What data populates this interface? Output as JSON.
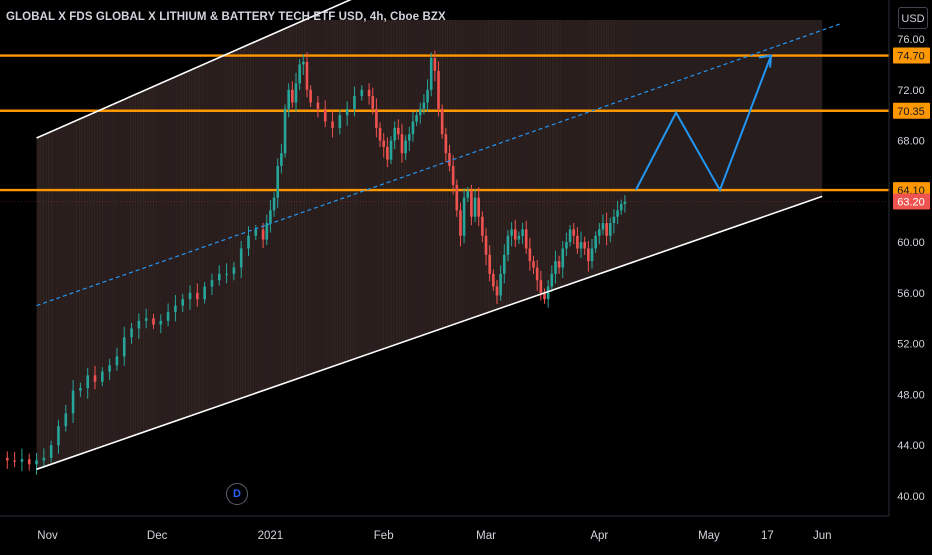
{
  "header": {
    "title": "GLOBAL X FDS GLOBAL X LITHIUM & BATTERY TECH ETF USD, 4h, Cboe BZX",
    "currency": "USD"
  },
  "dividend_marker": "D",
  "colors": {
    "background": "#000000",
    "channel_fill": "#2a1f1f",
    "up_candle": "#26a69a",
    "down_candle": "#ef5350",
    "horizontal_level": "#ff9800",
    "channel_line": "#ffffff",
    "midline": "#2196f3",
    "projection": "#2196f3",
    "axis_text": "#d1d4dc"
  },
  "chart_data": {
    "type": "candlestick",
    "title": "GLOBAL X FDS GLOBAL X LITHIUM & BATTERY TECH ETF USD, 4h, Cboe BZX",
    "y_axis": {
      "ticks": [
        40.0,
        44.0,
        48.0,
        52.0,
        56.0,
        60.0,
        64.0,
        68.0,
        72.0,
        76.0
      ],
      "tick_labels": [
        "40.00",
        "44.00",
        "48.00",
        "52.00",
        "56.00",
        "60.00",
        "64.00",
        "68.00",
        "72.00",
        "76.00"
      ],
      "ylim": [
        38.5,
        77.5
      ]
    },
    "x_axis": {
      "tick_labels": [
        "Nov",
        "Dec",
        "2021",
        "Feb",
        "Mar",
        "Apr",
        "May",
        "17",
        "Jun"
      ],
      "tick_days": [
        0,
        30,
        61,
        92,
        120,
        151,
        181,
        197,
        212
      ],
      "xlim_days": [
        -13,
        230
      ]
    },
    "price_labels": [
      {
        "value": 74.7,
        "label": "74.70",
        "kind": "level"
      },
      {
        "value": 70.35,
        "label": "70.35",
        "kind": "level"
      },
      {
        "value": 64.1,
        "label": "64.10",
        "kind": "level"
      },
      {
        "value": 63.2,
        "label": "63.20",
        "kind": "last"
      }
    ],
    "horizontal_levels": [
      74.7,
      70.35,
      64.1
    ],
    "channel": {
      "lower": [
        {
          "day": -3,
          "price": 42.1
        },
        {
          "day": 212,
          "price": 63.6
        }
      ],
      "upper": [
        {
          "day": -3,
          "price": 68.2
        },
        {
          "day": 90,
          "price": 80.0
        }
      ],
      "midline": [
        {
          "day": -3,
          "price": 55.0
        },
        {
          "day": 217,
          "price": 77.2
        }
      ]
    },
    "projection": [
      {
        "day": 161,
        "price": 64.1
      },
      {
        "day": 172,
        "price": 70.2
      },
      {
        "day": 184,
        "price": 64.1
      },
      {
        "day": 198,
        "price": 74.7
      }
    ],
    "closes": [
      [
        -13,
        43.0
      ],
      [
        -11,
        42.8
      ],
      [
        -9,
        42.7
      ],
      [
        -7,
        42.9
      ],
      [
        -5,
        42.5
      ],
      [
        -3,
        42.8
      ],
      [
        -1,
        43.0
      ],
      [
        1,
        44.0
      ],
      [
        3,
        45.5
      ],
      [
        5,
        46.5
      ],
      [
        7,
        48.3
      ],
      [
        9,
        48.5
      ],
      [
        11,
        49.5
      ],
      [
        13,
        49.0
      ],
      [
        15,
        49.8
      ],
      [
        17,
        50.3
      ],
      [
        19,
        51.0
      ],
      [
        21,
        52.5
      ],
      [
        23,
        53.2
      ],
      [
        25,
        53.8
      ],
      [
        27,
        54.0
      ],
      [
        29,
        53.5
      ],
      [
        31,
        53.8
      ],
      [
        33,
        54.5
      ],
      [
        35,
        55.0
      ],
      [
        37,
        55.5
      ],
      [
        39,
        56.0
      ],
      [
        41,
        55.5
      ],
      [
        43,
        56.5
      ],
      [
        45,
        57.0
      ],
      [
        47,
        57.5
      ],
      [
        49,
        57.5
      ],
      [
        51,
        58.0
      ],
      [
        53,
        59.5
      ],
      [
        55,
        60.5
      ],
      [
        57,
        61.0
      ],
      [
        59,
        60.2
      ],
      [
        60,
        61.5
      ],
      [
        61,
        62.5
      ],
      [
        62,
        63.5
      ],
      [
        63,
        66.0
      ],
      [
        64,
        67.0
      ],
      [
        65,
        70.5
      ],
      [
        66,
        72.0
      ],
      [
        67,
        71.0
      ],
      [
        68,
        72.5
      ],
      [
        69,
        74.0
      ],
      [
        70,
        74.2
      ],
      [
        71,
        72.0
      ],
      [
        72,
        71.0
      ],
      [
        74,
        70.5
      ],
      [
        76,
        69.5
      ],
      [
        78,
        69.0
      ],
      [
        80,
        70.0
      ],
      [
        82,
        70.5
      ],
      [
        84,
        71.5
      ],
      [
        86,
        72.0
      ],
      [
        88,
        71.5
      ],
      [
        89,
        70.5
      ],
      [
        90,
        69.0
      ],
      [
        91,
        68.0
      ],
      [
        92,
        67.5
      ],
      [
        93,
        66.5
      ],
      [
        94,
        68.0
      ],
      [
        95,
        69.0
      ],
      [
        96,
        68.5
      ],
      [
        97,
        67.0
      ],
      [
        98,
        68.0
      ],
      [
        99,
        68.5
      ],
      [
        100,
        69.5
      ],
      [
        101,
        70.0
      ],
      [
        102,
        70.5
      ],
      [
        103,
        71.0
      ],
      [
        104,
        72.0
      ],
      [
        105,
        74.5
      ],
      [
        106,
        73.5
      ],
      [
        107,
        70.5
      ],
      [
        108,
        68.5
      ],
      [
        109,
        67.0
      ],
      [
        110,
        66.0
      ],
      [
        111,
        64.5
      ],
      [
        112,
        62.5
      ],
      [
        113,
        60.5
      ],
      [
        114,
        63.5
      ],
      [
        115,
        64.0
      ],
      [
        116,
        62.0
      ],
      [
        117,
        63.5
      ],
      [
        118,
        62.0
      ],
      [
        119,
        60.5
      ],
      [
        120,
        59.0
      ],
      [
        121,
        57.5
      ],
      [
        122,
        56.5
      ],
      [
        123,
        55.8
      ],
      [
        124,
        57.5
      ],
      [
        125,
        59.0
      ],
      [
        126,
        60.5
      ],
      [
        127,
        61.0
      ],
      [
        128,
        60.2
      ],
      [
        129,
        60.5
      ],
      [
        130,
        61.0
      ],
      [
        131,
        59.5
      ],
      [
        132,
        58.5
      ],
      [
        133,
        58.0
      ],
      [
        134,
        57.0
      ],
      [
        135,
        56.0
      ],
      [
        136,
        55.5
      ],
      [
        137,
        56.5
      ],
      [
        138,
        57.5
      ],
      [
        139,
        58.5
      ],
      [
        140,
        58.0
      ],
      [
        141,
        59.5
      ],
      [
        142,
        60.0
      ],
      [
        143,
        61.0
      ],
      [
        144,
        60.5
      ],
      [
        145,
        59.5
      ],
      [
        146,
        60.0
      ],
      [
        147,
        59.5
      ],
      [
        148,
        58.5
      ],
      [
        149,
        59.5
      ],
      [
        150,
        60.5
      ],
      [
        151,
        61.0
      ],
      [
        152,
        61.5
      ],
      [
        153,
        60.5
      ],
      [
        154,
        61.5
      ],
      [
        155,
        62.0
      ],
      [
        156,
        62.5
      ],
      [
        157,
        63.0
      ],
      [
        158,
        63.2
      ]
    ]
  }
}
